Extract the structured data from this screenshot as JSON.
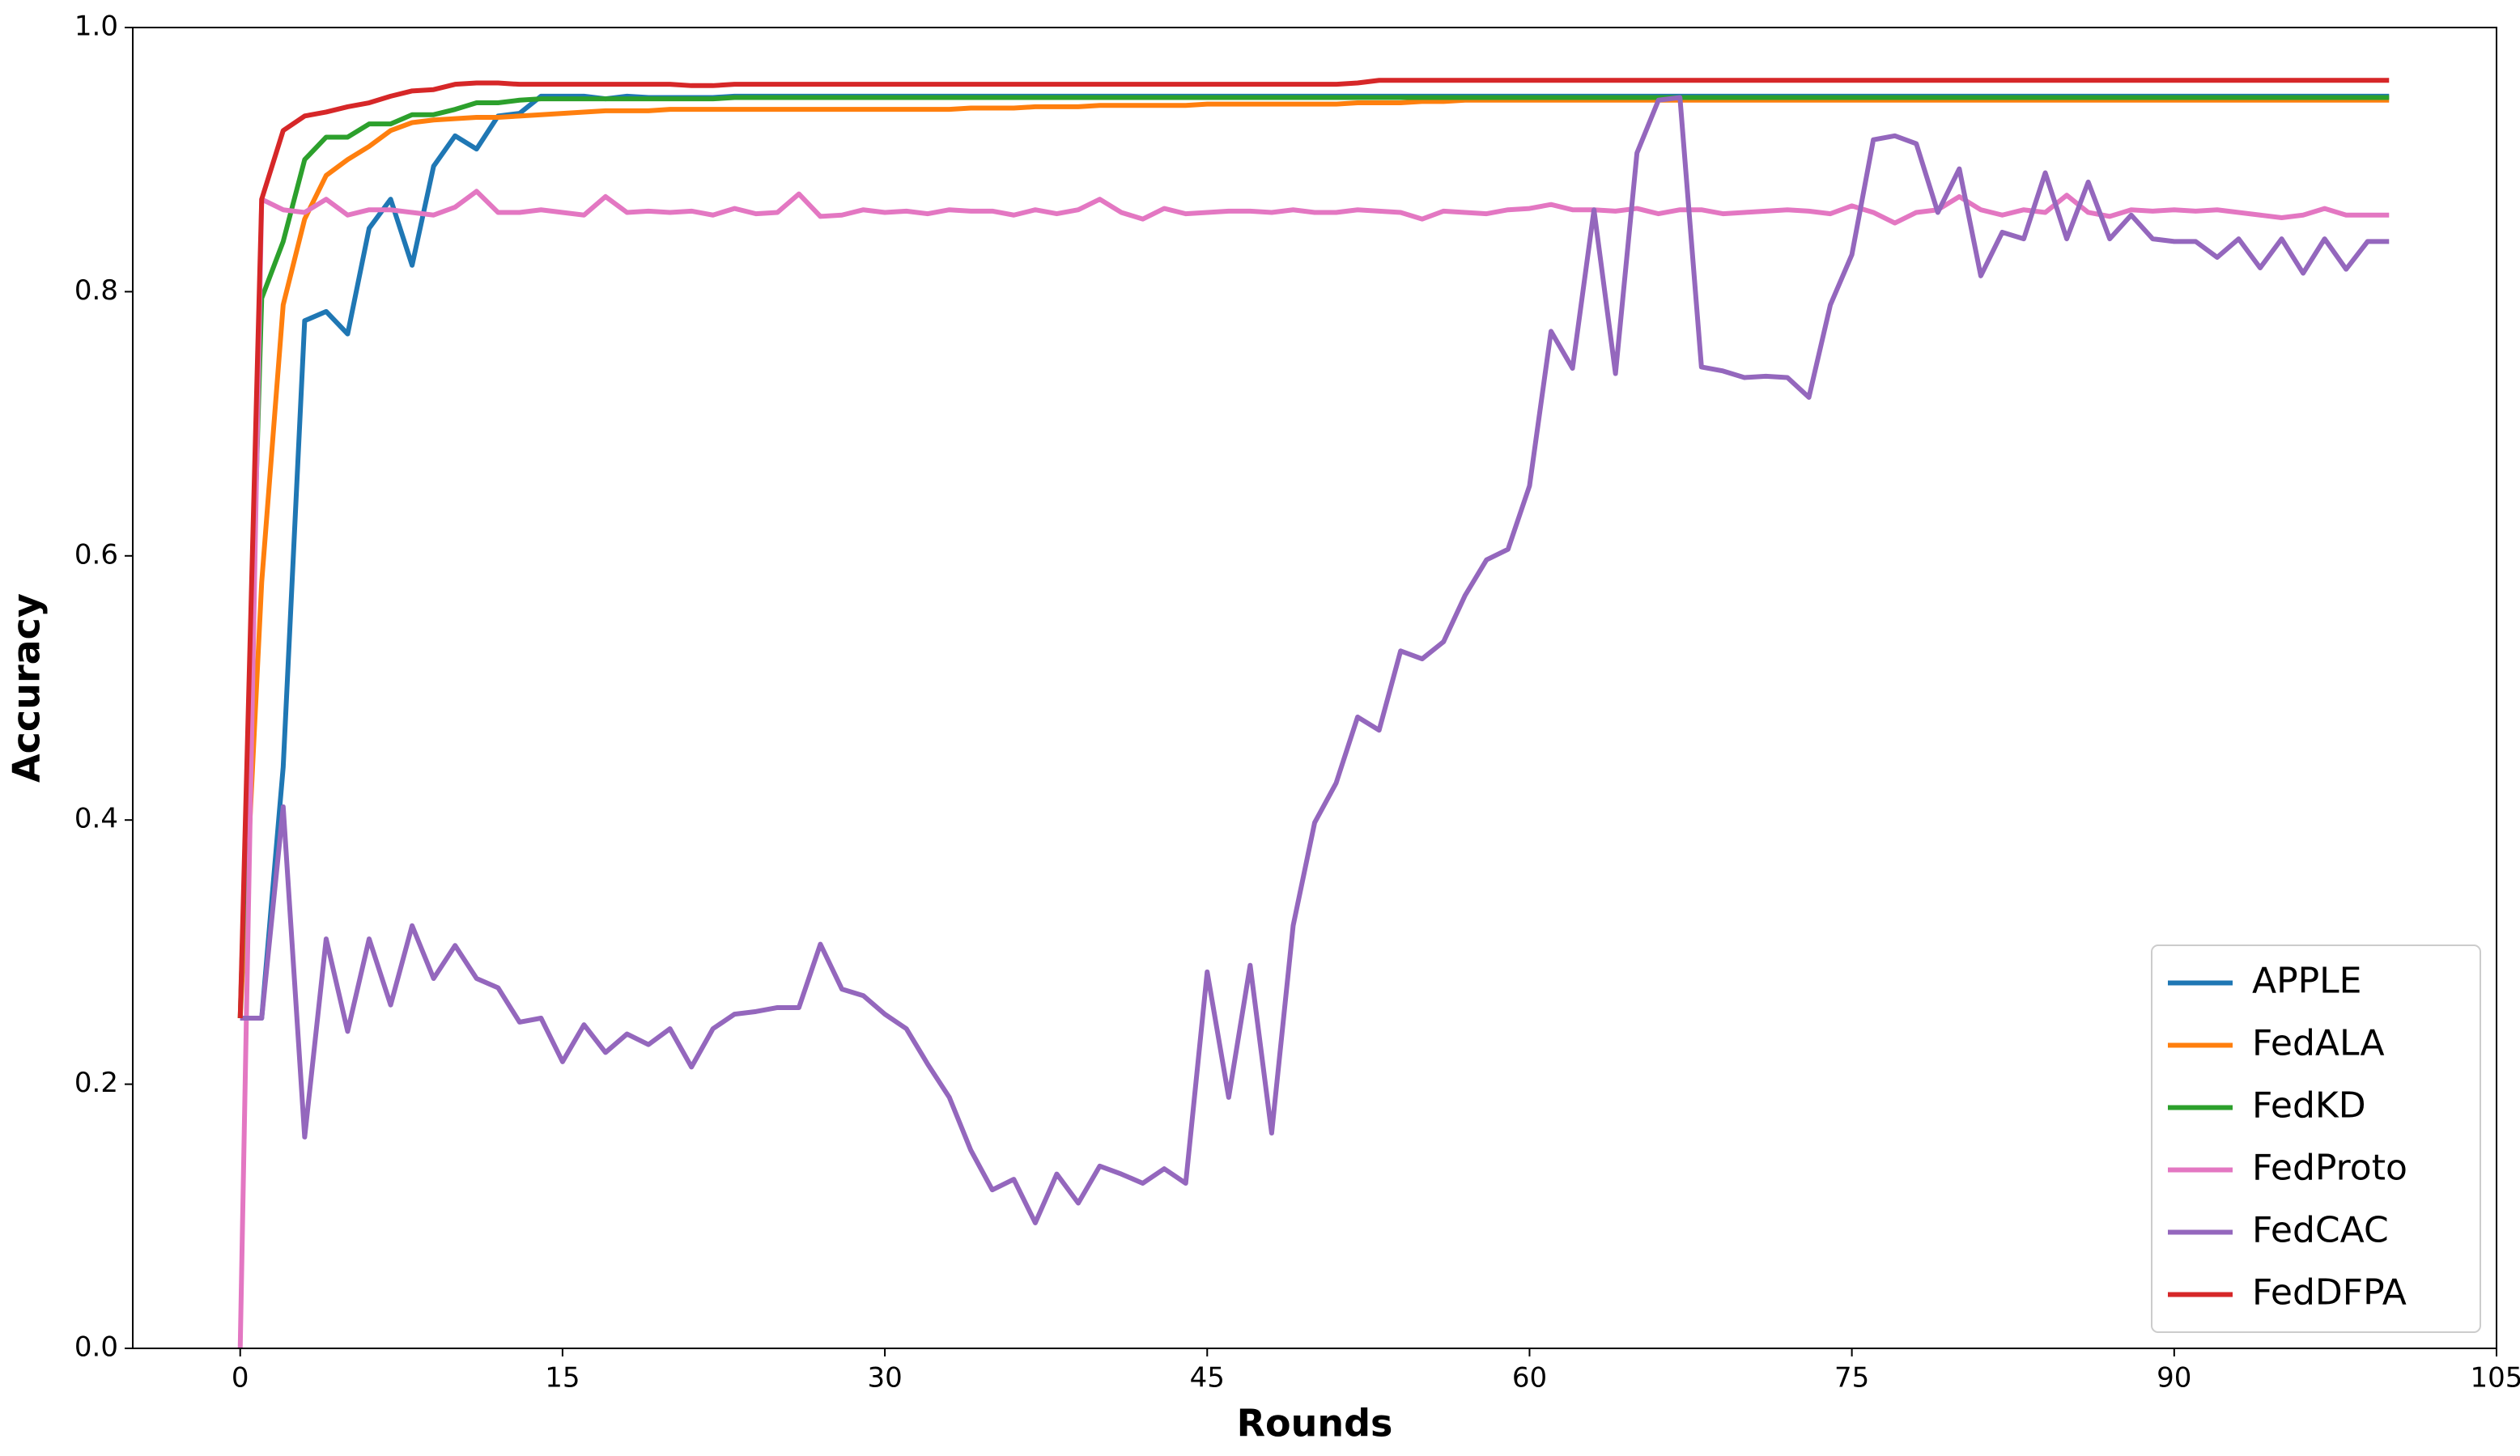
{
  "chart_data": {
    "type": "line",
    "x_label": "Rounds",
    "y_label": "Accuracy",
    "x": [
      0,
      1,
      2,
      3,
      4,
      5,
      6,
      7,
      8,
      9,
      10,
      11,
      12,
      13,
      14,
      15,
      16,
      17,
      18,
      19,
      20,
      21,
      22,
      23,
      24,
      25,
      26,
      27,
      28,
      29,
      30,
      31,
      32,
      33,
      34,
      35,
      36,
      37,
      38,
      39,
      40,
      41,
      42,
      43,
      44,
      45,
      46,
      47,
      48,
      49,
      50,
      51,
      52,
      53,
      54,
      55,
      56,
      57,
      58,
      59,
      60,
      61,
      62,
      63,
      64,
      65,
      66,
      67,
      68,
      69,
      70,
      71,
      72,
      73,
      74,
      75,
      76,
      77,
      78,
      79,
      80,
      81,
      82,
      83,
      84,
      85,
      86,
      87,
      88,
      89,
      90,
      91,
      92,
      93,
      94,
      95,
      96,
      97,
      98,
      99,
      100
    ],
    "xlim": [
      -5,
      105
    ],
    "xticks": [
      0,
      15,
      30,
      45,
      60,
      75,
      90,
      105
    ],
    "ylim": [
      0,
      1
    ],
    "yticks": [
      {
        "value": 0,
        "label": "0.0"
      },
      0.2,
      0.4,
      0.6,
      0.8,
      {
        "value": 1,
        "label": "1.0"
      }
    ],
    "grid": false,
    "legend": "lower right",
    "series": [
      {
        "name": "APPLE",
        "color": "#1f77b4",
        "values": [
          0.25,
          0.25,
          0.44,
          0.778,
          0.785,
          0.768,
          0.848,
          0.87,
          0.82,
          0.895,
          0.918,
          0.908,
          0.933,
          0.935,
          0.948,
          0.948,
          0.948,
          0.946,
          0.948,
          0.947,
          0.947,
          0.947,
          0.947,
          0.948,
          0.948,
          0.948,
          0.948,
          0.948,
          0.948,
          0.948,
          0.948,
          0.948,
          0.948,
          0.948,
          0.948,
          0.948,
          0.948,
          0.948,
          0.948,
          0.948,
          0.948,
          0.948,
          0.948,
          0.948,
          0.948,
          0.948,
          0.948,
          0.948,
          0.948,
          0.948,
          0.948,
          0.948,
          0.948,
          0.948,
          0.948,
          0.948,
          0.948,
          0.948,
          0.948,
          0.948,
          0.948,
          0.948,
          0.948,
          0.948,
          0.948,
          0.948,
          0.948,
          0.948,
          0.948,
          0.948,
          0.948,
          0.948,
          0.948,
          0.948,
          0.948,
          0.948,
          0.948,
          0.948,
          0.948,
          0.948,
          0.948,
          0.948,
          0.948,
          0.948,
          0.948,
          0.948,
          0.948,
          0.948,
          0.948,
          0.948,
          0.948,
          0.948,
          0.948,
          0.948,
          0.948,
          0.948,
          0.948,
          0.948,
          0.948,
          0.948,
          0.948
        ]
      },
      {
        "name": "FedALA",
        "color": "#ff7f0e",
        "values": [
          0.25,
          0.58,
          0.79,
          0.855,
          0.888,
          0.9,
          0.91,
          0.922,
          0.928,
          0.93,
          0.931,
          0.932,
          0.932,
          0.933,
          0.934,
          0.935,
          0.936,
          0.937,
          0.937,
          0.937,
          0.938,
          0.938,
          0.938,
          0.938,
          0.938,
          0.938,
          0.938,
          0.938,
          0.938,
          0.938,
          0.938,
          0.938,
          0.938,
          0.938,
          0.939,
          0.939,
          0.939,
          0.94,
          0.94,
          0.94,
          0.941,
          0.941,
          0.941,
          0.941,
          0.941,
          0.942,
          0.942,
          0.942,
          0.942,
          0.942,
          0.942,
          0.942,
          0.943,
          0.943,
          0.943,
          0.944,
          0.944,
          0.945,
          0.945,
          0.945,
          0.945,
          0.945,
          0.945,
          0.945,
          0.945,
          0.945,
          0.945,
          0.945,
          0.945,
          0.945,
          0.945,
          0.945,
          0.945,
          0.945,
          0.945,
          0.945,
          0.945,
          0.945,
          0.945,
          0.945,
          0.945,
          0.945,
          0.945,
          0.945,
          0.945,
          0.945,
          0.945,
          0.945,
          0.945,
          0.945,
          0.945,
          0.945,
          0.945,
          0.945,
          0.945,
          0.945,
          0.945,
          0.945,
          0.945,
          0.945,
          0.945
        ]
      },
      {
        "name": "FedKD",
        "color": "#2ca02c",
        "values": [
          0.25,
          0.795,
          0.838,
          0.9,
          0.917,
          0.917,
          0.927,
          0.927,
          0.934,
          0.934,
          0.938,
          0.943,
          0.943,
          0.945,
          0.946,
          0.946,
          0.946,
          0.946,
          0.946,
          0.946,
          0.946,
          0.946,
          0.946,
          0.947,
          0.947,
          0.947,
          0.947,
          0.947,
          0.947,
          0.947,
          0.947,
          0.947,
          0.947,
          0.947,
          0.947,
          0.947,
          0.947,
          0.947,
          0.947,
          0.947,
          0.947,
          0.947,
          0.947,
          0.947,
          0.947,
          0.947,
          0.947,
          0.947,
          0.947,
          0.947,
          0.947,
          0.947,
          0.947,
          0.947,
          0.947,
          0.947,
          0.947,
          0.947,
          0.947,
          0.947,
          0.947,
          0.947,
          0.947,
          0.947,
          0.947,
          0.947,
          0.947,
          0.947,
          0.947,
          0.947,
          0.947,
          0.947,
          0.947,
          0.947,
          0.947,
          0.947,
          0.947,
          0.947,
          0.947,
          0.947,
          0.947,
          0.947,
          0.947,
          0.947,
          0.947,
          0.947,
          0.947,
          0.947,
          0.947,
          0.947,
          0.947,
          0.947,
          0.947,
          0.947,
          0.947,
          0.947,
          0.947,
          0.947,
          0.947,
          0.947,
          0.947
        ]
      },
      {
        "name": "FedProto",
        "color": "#e377c2",
        "values": [
          0,
          0.87,
          0.862,
          0.86,
          0.87,
          0.858,
          0.862,
          0.862,
          0.86,
          0.858,
          0.864,
          0.876,
          0.86,
          0.86,
          0.862,
          0.86,
          0.858,
          0.872,
          0.86,
          0.861,
          0.86,
          0.861,
          0.858,
          0.863,
          0.859,
          0.86,
          0.874,
          0.857,
          0.858,
          0.862,
          0.86,
          0.861,
          0.859,
          0.862,
          0.861,
          0.861,
          0.858,
          0.862,
          0.859,
          0.862,
          0.87,
          0.86,
          0.855,
          0.863,
          0.859,
          0.86,
          0.861,
          0.861,
          0.86,
          0.862,
          0.86,
          0.86,
          0.862,
          0.861,
          0.86,
          0.855,
          0.861,
          0.86,
          0.859,
          0.862,
          0.863,
          0.866,
          0.862,
          0.862,
          0.861,
          0.863,
          0.859,
          0.862,
          0.862,
          0.859,
          0.86,
          0.861,
          0.862,
          0.861,
          0.859,
          0.865,
          0.86,
          0.852,
          0.86,
          0.862,
          0.872,
          0.862,
          0.858,
          0.862,
          0.86,
          0.873,
          0.86,
          0.857,
          0.862,
          0.861,
          0.862,
          0.861,
          0.862,
          0.86,
          0.858,
          0.856,
          0.858,
          0.863,
          0.858,
          0.858,
          0.858
        ]
      },
      {
        "name": "FedCAC",
        "color": "#9467bd",
        "values": [
          0.25,
          0.25,
          0.41,
          0.16,
          0.31,
          0.24,
          0.31,
          0.26,
          0.32,
          0.28,
          0.305,
          0.28,
          0.273,
          0.247,
          0.25,
          0.217,
          0.245,
          0.224,
          0.238,
          0.23,
          0.242,
          0.213,
          0.242,
          0.253,
          0.255,
          0.258,
          0.258,
          0.306,
          0.272,
          0.267,
          0.253,
          0.242,
          0.215,
          0.19,
          0.15,
          0.12,
          0.128,
          0.095,
          0.132,
          0.11,
          0.138,
          0.132,
          0.125,
          0.136,
          0.125,
          0.285,
          0.19,
          0.29,
          0.163,
          0.32,
          0.398,
          0.428,
          0.478,
          0.468,
          0.528,
          0.522,
          0.535,
          0.57,
          0.597,
          0.605,
          0.653,
          0.77,
          0.742,
          0.862,
          0.738,
          0.905,
          0.945,
          0.947,
          0.743,
          0.74,
          0.735,
          0.736,
          0.735,
          0.72,
          0.79,
          0.828,
          0.915,
          0.918,
          0.912,
          0.86,
          0.893,
          0.812,
          0.845,
          0.84,
          0.89,
          0.84,
          0.883,
          0.84,
          0.858,
          0.84,
          0.838,
          0.838,
          0.826,
          0.84,
          0.818,
          0.84,
          0.814,
          0.84,
          0.817,
          0.838,
          0.838
        ]
      },
      {
        "name": "FedDFPA",
        "color": "#d62728",
        "values": [
          0.25,
          0.87,
          0.922,
          0.933,
          0.936,
          0.94,
          0.943,
          0.948,
          0.952,
          0.953,
          0.957,
          0.958,
          0.958,
          0.957,
          0.957,
          0.957,
          0.957,
          0.957,
          0.957,
          0.957,
          0.957,
          0.956,
          0.956,
          0.957,
          0.957,
          0.957,
          0.957,
          0.957,
          0.957,
          0.957,
          0.957,
          0.957,
          0.957,
          0.957,
          0.957,
          0.957,
          0.957,
          0.957,
          0.957,
          0.957,
          0.957,
          0.957,
          0.957,
          0.957,
          0.957,
          0.957,
          0.957,
          0.957,
          0.957,
          0.957,
          0.957,
          0.957,
          0.958,
          0.96,
          0.96,
          0.96,
          0.96,
          0.96,
          0.96,
          0.96,
          0.96,
          0.96,
          0.96,
          0.96,
          0.96,
          0.96,
          0.96,
          0.96,
          0.96,
          0.96,
          0.96,
          0.96,
          0.96,
          0.96,
          0.96,
          0.96,
          0.96,
          0.96,
          0.96,
          0.96,
          0.96,
          0.96,
          0.96,
          0.96,
          0.96,
          0.96,
          0.96,
          0.96,
          0.96,
          0.96,
          0.96,
          0.96,
          0.96,
          0.96,
          0.96,
          0.96,
          0.96,
          0.96,
          0.96,
          0.96,
          0.96
        ]
      }
    ]
  }
}
